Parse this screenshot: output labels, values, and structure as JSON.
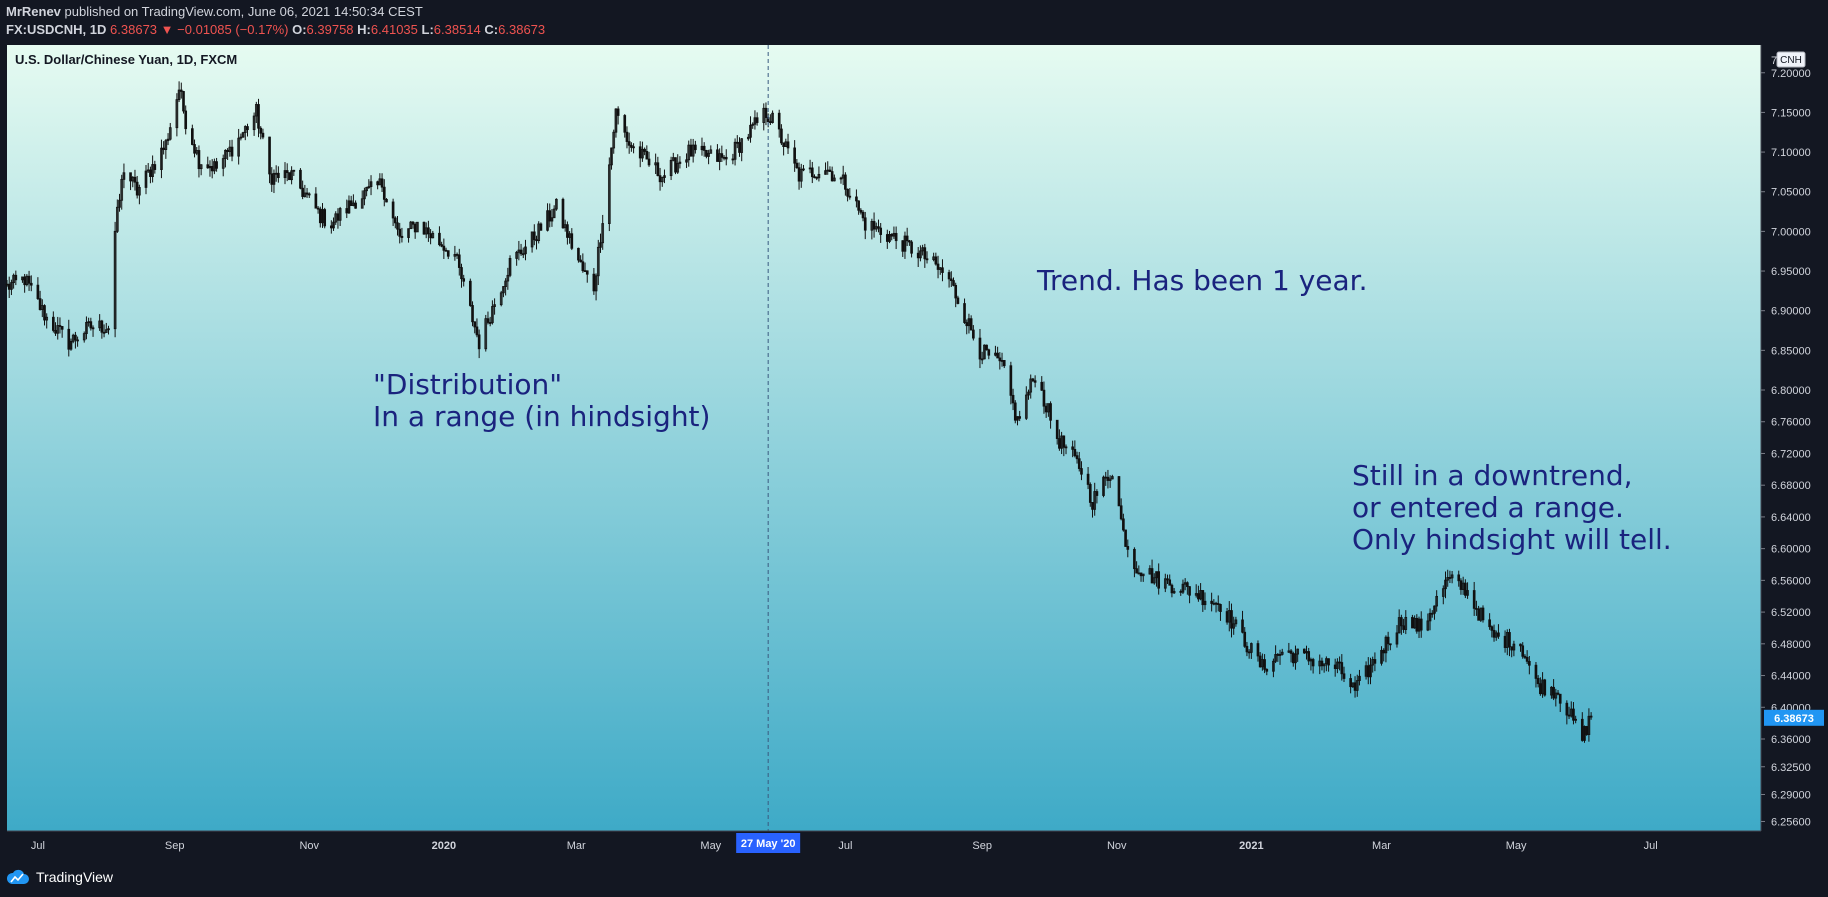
{
  "header": {
    "author": "MrRenev",
    "published_text": "published on TradingView.com, June 06, 2021 14:50:34 CEST",
    "symbol": "FX:USDCNH, 1D",
    "last": "6.38673",
    "change": "−0.01085 (−0.17%)",
    "open_label": "O:",
    "open": "6.39758",
    "high_label": "H:",
    "high": "6.41035",
    "low_label": "L:",
    "low": "6.38514",
    "close_label": "C:",
    "close": "6.38673"
  },
  "footer": {
    "brand": "TradingView"
  },
  "colors": {
    "background_top": "#e6fbf1",
    "background_bottom": "#3eaac7",
    "candle": "#111111",
    "price_tag": "#2196f3",
    "crosshair_tag": "#2962ff",
    "annotation_text": "#1a237e"
  },
  "chart_data": {
    "type": "candlestick",
    "title": "U.S. Dollar/Chinese Yuan, 1D, FXCM",
    "currency": "CNH",
    "x_range": [
      "2019-06-17",
      "2021-08-20"
    ],
    "ylim": [
      6.244,
      7.235
    ],
    "y_ticks": [
      "7.20000",
      "7.15000",
      "7.10000",
      "7.05000",
      "7.00000",
      "6.95000",
      "6.90000",
      "6.85000",
      "6.80000",
      "6.76000",
      "6.72000",
      "6.68000",
      "6.64000",
      "6.60000",
      "6.56000",
      "6.52000",
      "6.48000",
      "6.44000",
      "6.40000",
      "6.36000",
      "6.32500",
      "6.29000",
      "6.25600"
    ],
    "top_tick_partial": "7",
    "x_ticks": [
      {
        "label": "Jul",
        "date": "2019-07-01"
      },
      {
        "label": "Sep",
        "date": "2019-09-01"
      },
      {
        "label": "Nov",
        "date": "2019-11-01"
      },
      {
        "label": "2020",
        "date": "2020-01-01",
        "bold": true
      },
      {
        "label": "Mar",
        "date": "2020-03-01"
      },
      {
        "label": "May",
        "date": "2020-05-01"
      },
      {
        "label": "Jul",
        "date": "2020-07-01"
      },
      {
        "label": "Sep",
        "date": "2020-09-01"
      },
      {
        "label": "Nov",
        "date": "2020-11-01"
      },
      {
        "label": "2021",
        "date": "2021-01-01",
        "bold": true
      },
      {
        "label": "Mar",
        "date": "2021-03-01"
      },
      {
        "label": "May",
        "date": "2021-05-01"
      },
      {
        "label": "Jul",
        "date": "2021-07-01"
      }
    ],
    "crosshair": {
      "date": "2020-05-27",
      "label": "27 May '20"
    },
    "last_price_label": "6.38673",
    "anchors": [
      [
        "2019-06-17",
        6.93
      ],
      [
        "2019-06-25",
        6.94
      ],
      [
        "2019-07-05",
        6.89
      ],
      [
        "2019-07-15",
        6.86
      ],
      [
        "2019-07-25",
        6.88
      ],
      [
        "2019-08-02",
        6.88
      ],
      [
        "2019-08-05",
        7.0
      ],
      [
        "2019-08-09",
        7.08
      ],
      [
        "2019-08-15",
        7.05
      ],
      [
        "2019-08-28",
        7.11
      ],
      [
        "2019-09-03",
        7.18
      ],
      [
        "2019-09-06",
        7.14
      ],
      [
        "2019-09-12",
        7.09
      ],
      [
        "2019-09-20",
        7.08
      ],
      [
        "2019-10-01",
        7.12
      ],
      [
        "2019-10-08",
        7.15
      ],
      [
        "2019-10-14",
        7.07
      ],
      [
        "2019-10-24",
        7.07
      ],
      [
        "2019-11-06",
        7.02
      ],
      [
        "2019-11-11",
        7.01
      ],
      [
        "2019-11-22",
        7.04
      ],
      [
        "2019-12-04",
        7.06
      ],
      [
        "2019-12-12",
        6.99
      ],
      [
        "2019-12-20",
        7.01
      ],
      [
        "2020-01-06",
        6.97
      ],
      [
        "2020-01-17",
        6.86
      ],
      [
        "2020-01-31",
        6.96
      ],
      [
        "2020-02-10",
        6.99
      ],
      [
        "2020-02-21",
        7.03
      ],
      [
        "2020-03-04",
        6.95
      ],
      [
        "2020-03-09",
        6.93
      ],
      [
        "2020-03-19",
        7.15
      ],
      [
        "2020-03-25",
        7.11
      ],
      [
        "2020-04-09",
        7.07
      ],
      [
        "2020-04-21",
        7.1
      ],
      [
        "2020-05-08",
        7.09
      ],
      [
        "2020-05-26",
        7.15
      ],
      [
        "2020-05-29",
        7.14
      ],
      [
        "2020-06-10",
        7.07
      ],
      [
        "2020-06-22",
        7.08
      ],
      [
        "2020-07-01",
        7.06
      ],
      [
        "2020-07-10",
        7.01
      ],
      [
        "2020-07-24",
        6.99
      ],
      [
        "2020-08-05",
        6.97
      ],
      [
        "2020-08-17",
        6.94
      ],
      [
        "2020-08-31",
        6.85
      ],
      [
        "2020-09-10",
        6.83
      ],
      [
        "2020-09-17",
        6.76
      ],
      [
        "2020-09-25",
        6.82
      ],
      [
        "2020-10-05",
        6.74
      ],
      [
        "2020-10-16",
        6.7
      ],
      [
        "2020-10-21",
        6.66
      ],
      [
        "2020-10-30",
        6.7
      ],
      [
        "2020-11-04",
        6.62
      ],
      [
        "2020-11-09",
        6.58
      ],
      [
        "2020-11-20",
        6.56
      ],
      [
        "2020-12-02",
        6.55
      ],
      [
        "2020-12-18",
        6.53
      ],
      [
        "2021-01-06",
        6.45
      ],
      [
        "2021-01-15",
        6.47
      ],
      [
        "2021-01-29",
        6.46
      ],
      [
        "2021-02-09",
        6.45
      ],
      [
        "2021-02-17",
        6.42
      ],
      [
        "2021-02-26",
        6.46
      ],
      [
        "2021-03-10",
        6.51
      ],
      [
        "2021-03-19",
        6.5
      ],
      [
        "2021-03-31",
        6.56
      ],
      [
        "2021-04-08",
        6.55
      ],
      [
        "2021-04-20",
        6.49
      ],
      [
        "2021-05-03",
        6.48
      ],
      [
        "2021-05-10",
        6.43
      ],
      [
        "2021-05-20",
        6.42
      ],
      [
        "2021-05-31",
        6.36
      ],
      [
        "2021-06-04",
        6.39
      ]
    ]
  },
  "annotations": {
    "distribution": [
      "\"Distribution\"",
      "In a range (in hindsight)"
    ],
    "trend": [
      "Trend. Has been 1 year."
    ],
    "still": [
      "Still in a downtrend,",
      "or entered a range.",
      "Only hindsight will tell."
    ]
  }
}
